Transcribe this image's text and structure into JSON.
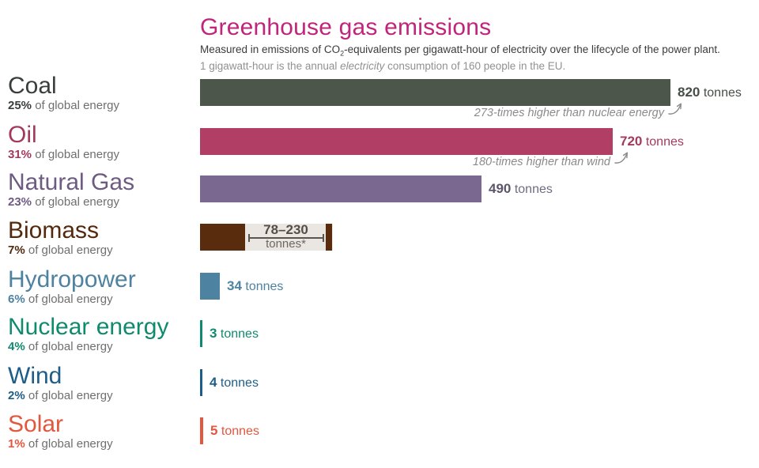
{
  "header": {
    "title": "Greenhouse gas emissions",
    "subtitle_part1": "Measured in emissions of CO",
    "subtitle_sub": "2",
    "subtitle_part2": "-equivalents per gigawatt-hour of electricity over the lifecycle of the power plant.",
    "subtitle2_part1": "1 gigawatt-hour is the annual ",
    "subtitle2_italic": "electricity",
    "subtitle2_part2": " consumption of 160 people in the EU."
  },
  "chart_data": {
    "type": "bar",
    "orientation": "horizontal",
    "title": "Greenhouse gas emissions",
    "unit": "tonnes",
    "x_max_tonnes": 820,
    "grid": false,
    "series": [
      {
        "name": "Coal",
        "share": "25%",
        "share_text": "of global energy",
        "value": 820,
        "value_label": "820",
        "bar_color": "#4d564a",
        "label_color": "#393e3b",
        "value_color": "#454f47",
        "annotation": "273-times higher than nuclear energy"
      },
      {
        "name": "Oil",
        "share": "31%",
        "share_text": "of global energy",
        "value": 720,
        "value_label": "720",
        "bar_color": "#b03e65",
        "label_color": "#a23a5e",
        "value_color": "#a23a5e",
        "annotation": "180-times higher than wind"
      },
      {
        "name": "Natural Gas",
        "share": "23%",
        "share_text": "of global energy",
        "value": 490,
        "value_label": "490",
        "bar_color": "#7b6890",
        "label_color": "#6e5b82",
        "value_color": "#5d5569",
        "unit_color": "#716a80"
      },
      {
        "name": "Biomass",
        "share": "7%",
        "share_text": "of global energy",
        "bar_color": "#5a2c0e",
        "label_color": "#52290e",
        "range": {
          "min": 78,
          "max": 230,
          "label": "78–230",
          "unit_label": "tonnes*"
        }
      },
      {
        "name": "Hydropower",
        "share": "6%",
        "share_text": "of global energy",
        "value": 34,
        "value_label": "34",
        "bar_color": "#4d82a1",
        "label_color": "#4d82a1",
        "value_color": "#4d82a1"
      },
      {
        "name": "Nuclear energy",
        "share": "4%",
        "share_text": "of global energy",
        "value": 3,
        "value_label": "3",
        "bar_color": "#108a6f",
        "label_color": "#108a6f",
        "value_color": "#108a6f"
      },
      {
        "name": "Wind",
        "share": "2%",
        "share_text": "of global energy",
        "value": 4,
        "value_label": "4",
        "bar_color": "#1e5d87",
        "label_color": "#1e5d87",
        "value_color": "#1e5d87"
      },
      {
        "name": "Solar",
        "share": "1%",
        "share_text": "of global energy",
        "value": 5,
        "value_label": "5",
        "bar_color": "#e2573e",
        "label_color": "#e2573e",
        "value_color": "#e2573e"
      }
    ]
  }
}
